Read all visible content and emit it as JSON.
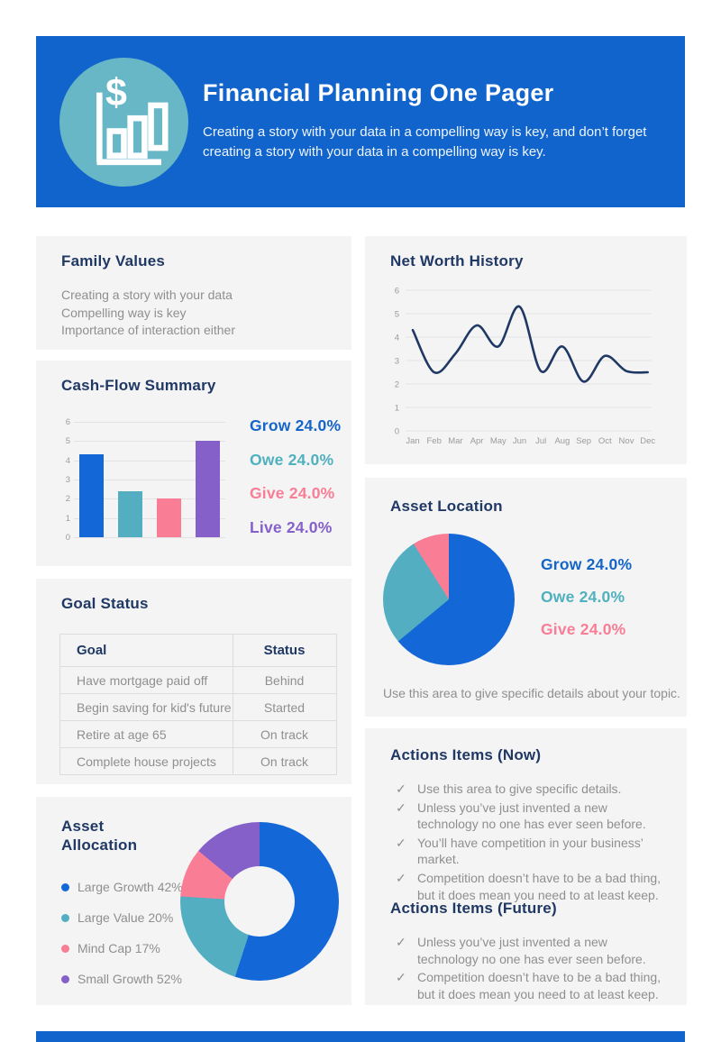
{
  "colors": {
    "header_bg": "#1164cb",
    "header_circle": "#67b7c7",
    "heading_navy": "#1f3864",
    "body_gray": "#8f8f8f",
    "blue": "#1467d6",
    "teal": "#53aec2",
    "pink": "#f97d95",
    "purple": "#8560c9",
    "line_navy": "#1f3864",
    "footer_bar": "#1164cb"
  },
  "header": {
    "title": "Financial Planning One Pager",
    "subtitle": "Creating a story with your data in a compelling way is key, and don’t forget creating a story with your data in a compelling way is key.",
    "icon": "dollar-bar-chart-icon"
  },
  "family_values": {
    "title": "Family Values",
    "lines": [
      "Creating a story with your data",
      "Compelling way is key",
      "Importance of interaction either"
    ]
  },
  "cash_flow": {
    "title": "Cash-Flow Summary"
  },
  "net_worth": {
    "title": "Net Worth History"
  },
  "goal_status": {
    "title": "Goal Status",
    "columns": [
      "Goal",
      "Status"
    ],
    "rows": [
      [
        "Have mortgage paid off",
        "Behind"
      ],
      [
        "Begin saving for kid's future",
        "Started"
      ],
      [
        "Retire at age 65",
        "On track"
      ],
      [
        "Complete house projects",
        "On track"
      ]
    ]
  },
  "asset_location": {
    "title": "Asset Location",
    "caption": "Use this area to give specific details about your topic."
  },
  "asset_allocation": {
    "title": "Asset Allocation"
  },
  "actions_now": {
    "title": "Actions Items (Now)",
    "items": [
      "Use this area to give specific details.",
      "Unless you’ve just invented a new technology no one has ever seen before.",
      "You’ll have competition in your business’ market.",
      "Competition doesn’t have to be a bad thing, but it does mean you need to at least keep."
    ]
  },
  "actions_future": {
    "title": "Actions Items (Future)",
    "items": [
      "Unless you’ve just invented a new technology no one has ever seen before.",
      "Competition doesn’t have to be a bad thing, but it does mean you need to at least keep."
    ]
  },
  "chart_data": [
    {
      "id": "cash_flow_bars",
      "type": "bar",
      "title": "Cash-Flow Summary",
      "categories": [
        "Grow",
        "Owe",
        "Give",
        "Live"
      ],
      "values": [
        4.3,
        2.4,
        2.0,
        5.0
      ],
      "bar_colors": [
        "#1467d6",
        "#53aec2",
        "#f97d95",
        "#8560c9"
      ],
      "ylim": [
        0,
        6
      ],
      "yticks": [
        0,
        1,
        2,
        3,
        4,
        5,
        6
      ],
      "grid": true,
      "legend_position": "right",
      "legend": [
        {
          "text": "Grow 24.0%",
          "color": "#1565c8"
        },
        {
          "text": "Owe 24.0%",
          "color": "#4fb0be"
        },
        {
          "text": "Give 24.0%",
          "color": "#f97d95"
        },
        {
          "text": "Live 24.0%",
          "color": "#8560c9"
        }
      ]
    },
    {
      "id": "net_worth_line",
      "type": "line",
      "title": "Net Worth History",
      "x": [
        "Jan",
        "Feb",
        "Mar",
        "Apr",
        "May",
        "Jun",
        "Jul",
        "Aug",
        "Sep",
        "Oct",
        "Nov",
        "Dec"
      ],
      "values": [
        4.3,
        2.5,
        3.3,
        4.5,
        3.6,
        5.3,
        2.55,
        3.6,
        2.1,
        3.2,
        2.55,
        2.5
      ],
      "ylim": [
        0,
        6
      ],
      "yticks": [
        0,
        1,
        2,
        3,
        4,
        5,
        6
      ],
      "grid": true,
      "line_color": "#1f3864"
    },
    {
      "id": "asset_location_pie",
      "type": "pie",
      "title": "Asset Location",
      "slices": [
        {
          "label": "Grow",
          "display": "Grow 24.0%",
          "value": 24.0,
          "visual_percent": 64,
          "color": "#1467d6",
          "text_color": "#1565c8"
        },
        {
          "label": "Owe",
          "display": "Owe 24.0%",
          "value": 24.0,
          "visual_percent": 27,
          "color": "#53aec2",
          "text_color": "#4fb0be"
        },
        {
          "label": "Give",
          "display": "Give 24.0%",
          "value": 24.0,
          "visual_percent": 9,
          "color": "#f97d95",
          "text_color": "#f97d95"
        }
      ],
      "legend_position": "right"
    },
    {
      "id": "asset_allocation_donut",
      "type": "donut",
      "title": "Asset Allocation",
      "slices": [
        {
          "label": "Large Growth",
          "display": "Large Growth 42%",
          "value": 42,
          "visual_percent": 55,
          "color": "#1467d6"
        },
        {
          "label": "Large Value",
          "display": "Large Value 20%",
          "value": 20,
          "visual_percent": 21,
          "color": "#53aec2"
        },
        {
          "label": "Mind Cap",
          "display": "Mind Cap 17%",
          "value": 17,
          "visual_percent": 10,
          "color": "#f97d95"
        },
        {
          "label": "Small Growth",
          "display": "Small Growth 52%",
          "value": 52,
          "visual_percent": 14,
          "color": "#8560c9"
        }
      ],
      "legend_position": "left"
    }
  ]
}
